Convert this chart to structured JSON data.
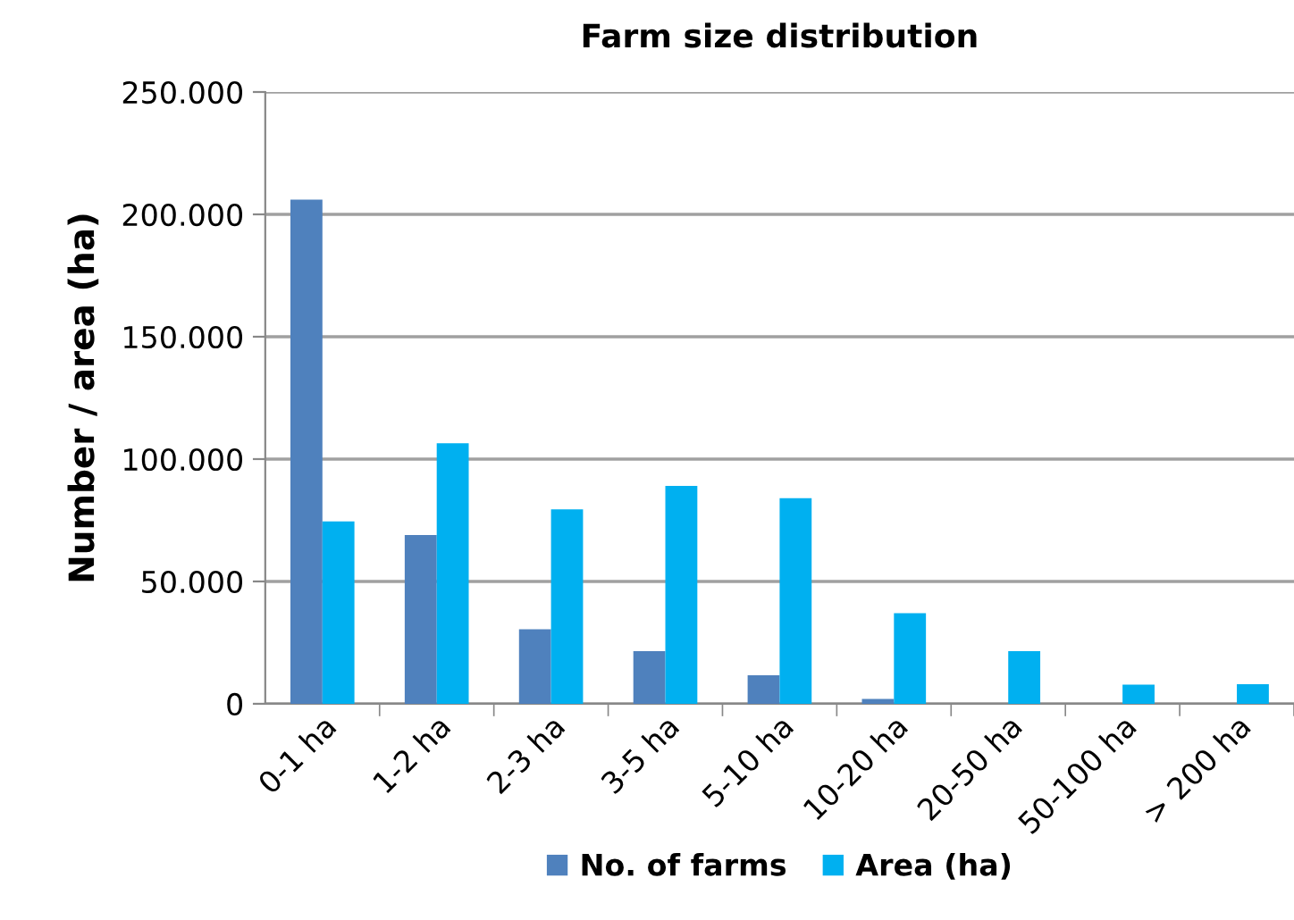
{
  "chart_data": {
    "type": "bar",
    "title": "Farm size distribution",
    "ylabel": "Number / area (ha)",
    "categories": [
      "0-1 ha",
      "1-2 ha",
      "2-3 ha",
      "3-5 ha",
      "5-10 ha",
      "10-20 ha",
      "20-50 ha",
      "50-100 ha",
      "> 200 ha"
    ],
    "series": [
      {
        "name": "No. of farms",
        "color": "#4f81bd",
        "values": [
          206000,
          69000,
          30500,
          21500,
          11700,
          2000,
          0,
          0,
          0
        ]
      },
      {
        "name": "Area (ha)",
        "color": "#00b0f0",
        "values": [
          74500,
          106500,
          79500,
          89000,
          84000,
          37000,
          21500,
          7800,
          8000
        ]
      }
    ],
    "ylim": [
      0,
      250000
    ],
    "yticks": [
      0,
      {
        "value": 50000,
        "label": "50.000"
      },
      {
        "value": 100000,
        "label": "100.000"
      },
      {
        "value": 150000,
        "label": "150.000"
      },
      {
        "value": 200000,
        "label": "200.000"
      },
      {
        "value": 250000,
        "label": "250.000"
      }
    ],
    "grid": "y",
    "legend": "bottom"
  }
}
